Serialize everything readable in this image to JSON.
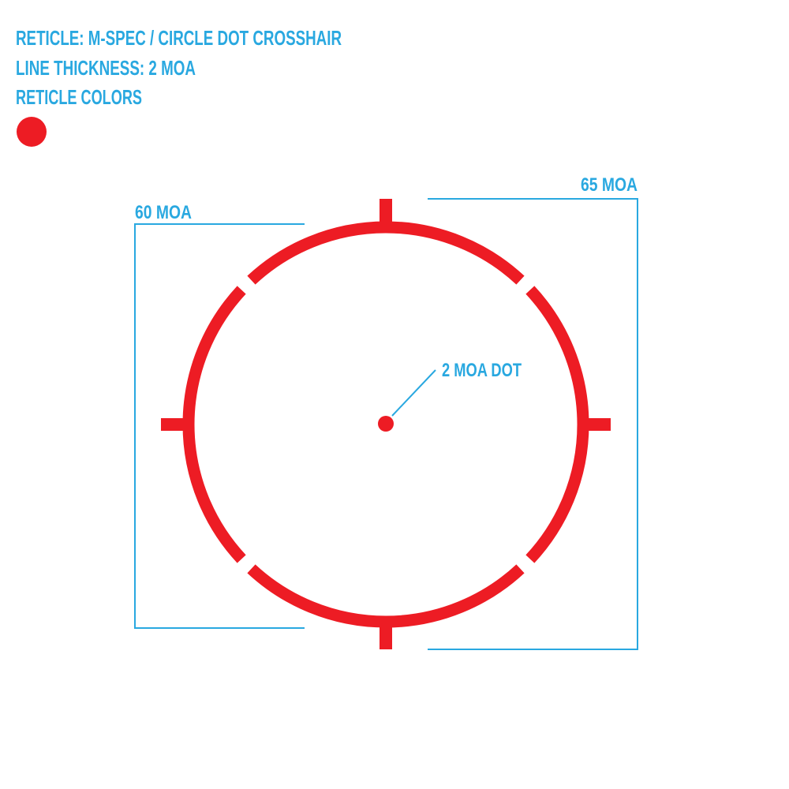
{
  "header": {
    "line1": "RETICLE: M-SPEC / CIRCLE DOT CROSSHAIR",
    "line2": "LINE THICKNESS: 2 MOA",
    "line3": "RETICLE COLORS"
  },
  "swatches": [
    {
      "name": "red",
      "color": "#ed1c24"
    }
  ],
  "reticle": {
    "color": "#ed1c24",
    "dot_label": "2 MOA DOT",
    "inner_span_label": "60 MOA",
    "outer_span_label": "65 MOA"
  },
  "colors": {
    "annotation": "#29a8e0",
    "reticle": "#ed1c24"
  }
}
